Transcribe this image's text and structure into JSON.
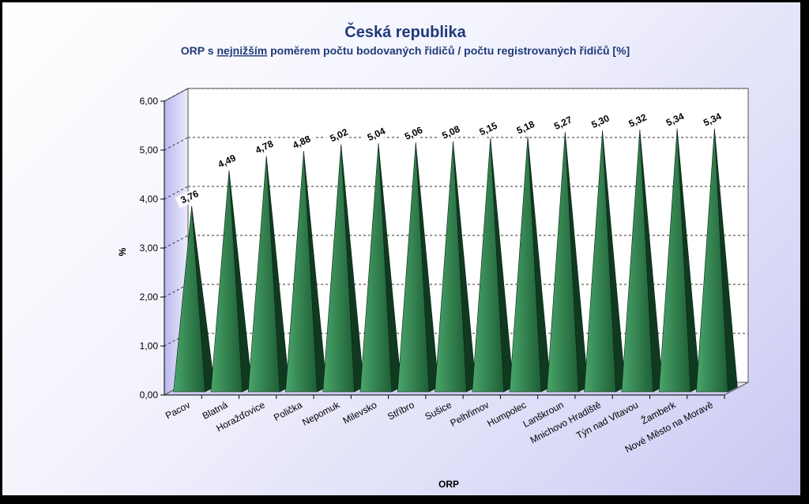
{
  "chart_data": {
    "type": "bar",
    "style": "3d-pyramid",
    "title": "Česká republika",
    "subtitle_before": "ORP s ",
    "subtitle_underlined": "nejnižším",
    "subtitle_after": " poměrem počtu bodovaných řidičů / počtu registrovaných řidičů [%]",
    "xlabel": "ORP",
    "ylabel": "%",
    "ylim": [
      0,
      6
    ],
    "yticks": [
      "0,00",
      "1,00",
      "2,00",
      "3,00",
      "4,00",
      "5,00",
      "6,00"
    ],
    "grid": true,
    "categories": [
      "Pacov",
      "Blatná",
      "Horažďovice",
      "Polička",
      "Nepomuk",
      "Milevsko",
      "Stříbro",
      "Sušice",
      "Pelhřimov",
      "Humpolec",
      "Lanškroun",
      "Mnichovo Hradiště",
      "Týn nad Vltavou",
      "Žamberk",
      "Nové Město na Moravě"
    ],
    "values": [
      3.76,
      4.49,
      4.78,
      4.88,
      5.02,
      5.04,
      5.06,
      5.08,
      5.15,
      5.18,
      5.27,
      5.3,
      5.32,
      5.34,
      5.34
    ],
    "value_labels": [
      "3,76",
      "4,49",
      "4,78",
      "4,88",
      "5,02",
      "5,04",
      "5,06",
      "5,08",
      "5,15",
      "5,18",
      "5,27",
      "5,30",
      "5,32",
      "5,34",
      "5,34"
    ],
    "colors": {
      "pyramid_front": "#2d7a4a",
      "pyramid_side": "#0f3a20",
      "title": "#1f3a7a"
    }
  }
}
